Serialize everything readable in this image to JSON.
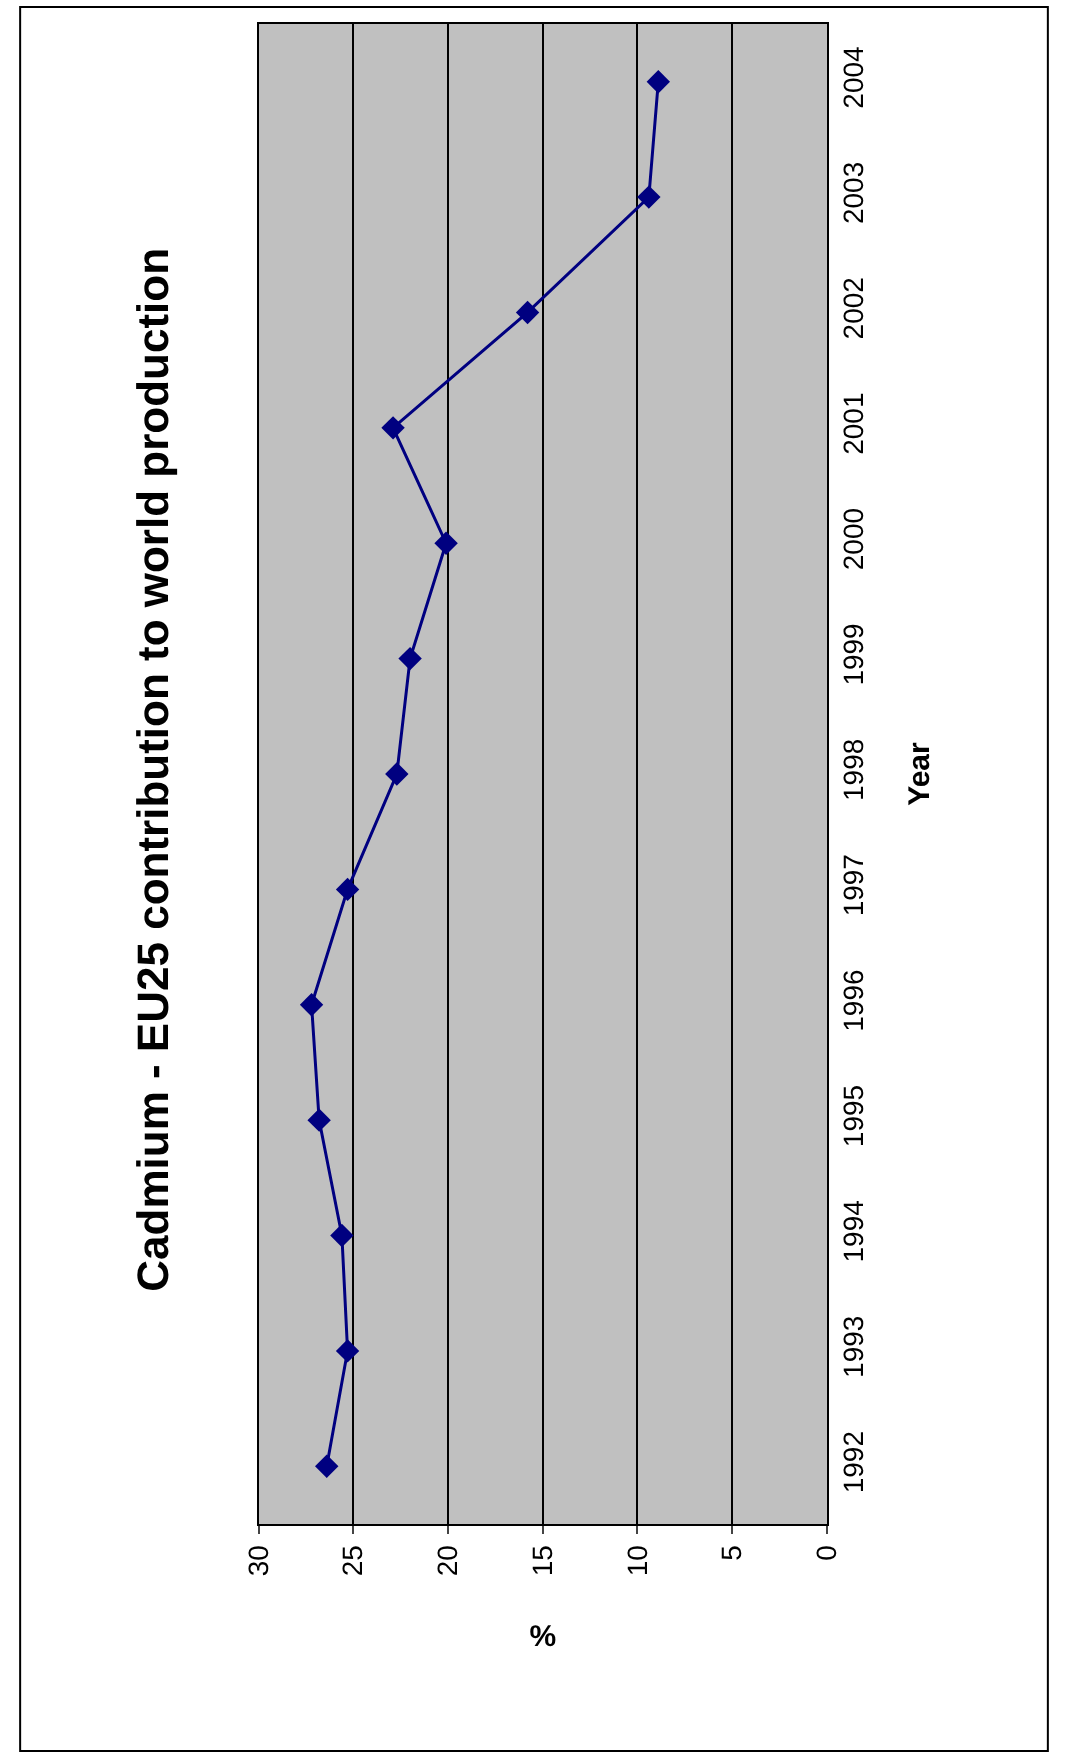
{
  "chart_data": {
    "type": "line",
    "orientation": "horizontal",
    "title": "Cadmium - EU25 contribution to world production",
    "ylabel": "Year",
    "xlabel": "%",
    "categories": [
      "2004",
      "2003",
      "2002",
      "2001",
      "2000",
      "1999",
      "1998",
      "1997",
      "1996",
      "1995",
      "1994",
      "1993",
      "1992"
    ],
    "series": [
      {
        "color": "#000080",
        "values": [
          8.9,
          9.4,
          15.8,
          22.9,
          20.1,
          22.0,
          22.7,
          25.3,
          27.2,
          26.8,
          25.6,
          25.3,
          26.4
        ]
      }
    ],
    "xlim": [
      30,
      0
    ],
    "xticks": [
      30,
      25,
      20,
      15,
      10,
      5,
      0
    ],
    "grid": "x",
    "marker": "diamond",
    "line_style": "solid",
    "legend": false
  }
}
